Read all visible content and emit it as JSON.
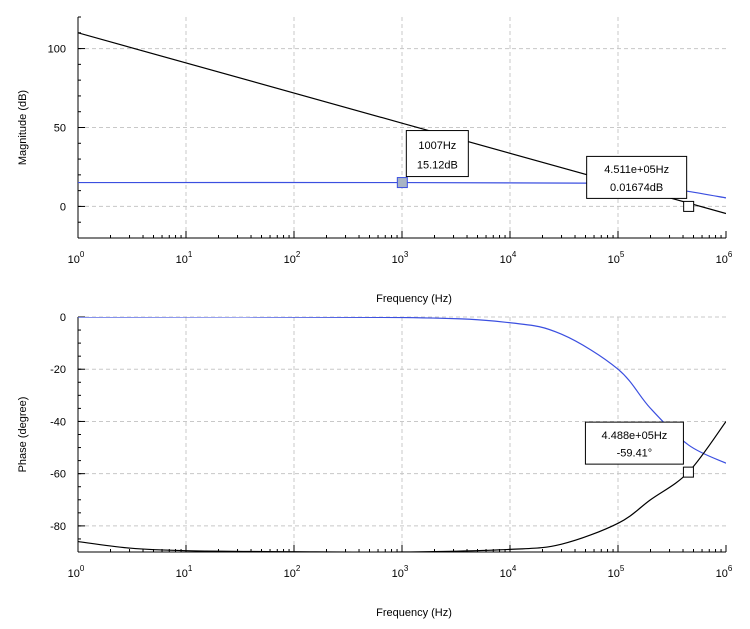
{
  "chart_data": [
    {
      "type": "line",
      "title": "",
      "xlabel": "Frequency (Hz)",
      "ylabel": "Magnitude (dB)",
      "x_scale": "log",
      "xlim": [
        1,
        1000000
      ],
      "ylim": [
        -20,
        120
      ],
      "x_ticks": [
        {
          "base": "10",
          "exp": "0"
        },
        {
          "base": "10",
          "exp": "1"
        },
        {
          "base": "10",
          "exp": "2"
        },
        {
          "base": "10",
          "exp": "3"
        },
        {
          "base": "10",
          "exp": "4"
        },
        {
          "base": "10",
          "exp": "5"
        },
        {
          "base": "10",
          "exp": "6"
        }
      ],
      "y_ticks": [
        "0",
        "50",
        "100"
      ],
      "grid": true,
      "series": [
        {
          "color": "#000000",
          "x": [
            1,
            1000000
          ],
          "y": [
            110,
            -4.5
          ]
        },
        {
          "color": "#3b4fe0",
          "x": [
            1,
            1000,
            100000,
            200000,
            451100,
            1000000
          ],
          "y": [
            15.12,
            15.12,
            14.7,
            13.1,
            9.5,
            5.4
          ]
        }
      ],
      "annotations": [
        {
          "x": 1007,
          "y": 15.12,
          "line1": "1007Hz",
          "line2": "15.12dB",
          "marker": "filled"
        },
        {
          "x": 451100,
          "y": 0.01674,
          "line1": "4.511e+05Hz",
          "line2": "0.01674dB",
          "marker": "hollow"
        }
      ]
    },
    {
      "type": "line",
      "title": "",
      "xlabel": "Frequency (Hz)",
      "ylabel": "Phase (degree)",
      "x_scale": "log",
      "xlim": [
        1,
        1000000
      ],
      "ylim": [
        -90,
        0
      ],
      "x_ticks": [
        {
          "base": "10",
          "exp": "0"
        },
        {
          "base": "10",
          "exp": "1"
        },
        {
          "base": "10",
          "exp": "2"
        },
        {
          "base": "10",
          "exp": "3"
        },
        {
          "base": "10",
          "exp": "4"
        },
        {
          "base": "10",
          "exp": "5"
        },
        {
          "base": "10",
          "exp": "6"
        }
      ],
      "y_ticks": [
        "0",
        "-20",
        "-40",
        "-60",
        "-80"
      ],
      "grid": true,
      "series": [
        {
          "color": "#3b4fe0",
          "x": [
            1,
            1000,
            10000,
            30000,
            100000,
            200000,
            448800,
            1000000
          ],
          "y": [
            0,
            -0.2,
            -2.2,
            -6.6,
            -20,
            -35,
            -49,
            -56
          ]
        },
        {
          "color": "#000000",
          "x": [
            1,
            3,
            10,
            100,
            1000,
            10000,
            30000,
            100000,
            200000,
            448800,
            1000000
          ],
          "y": [
            -86,
            -88.5,
            -89.5,
            -89.9,
            -90,
            -89,
            -87,
            -79,
            -70,
            -59.41,
            -40
          ]
        }
      ],
      "annotations": [
        {
          "x": 448800,
          "y": -59.41,
          "line1": "4.488e+05Hz",
          "line2": "-59.41°",
          "marker": "hollow"
        }
      ]
    }
  ]
}
